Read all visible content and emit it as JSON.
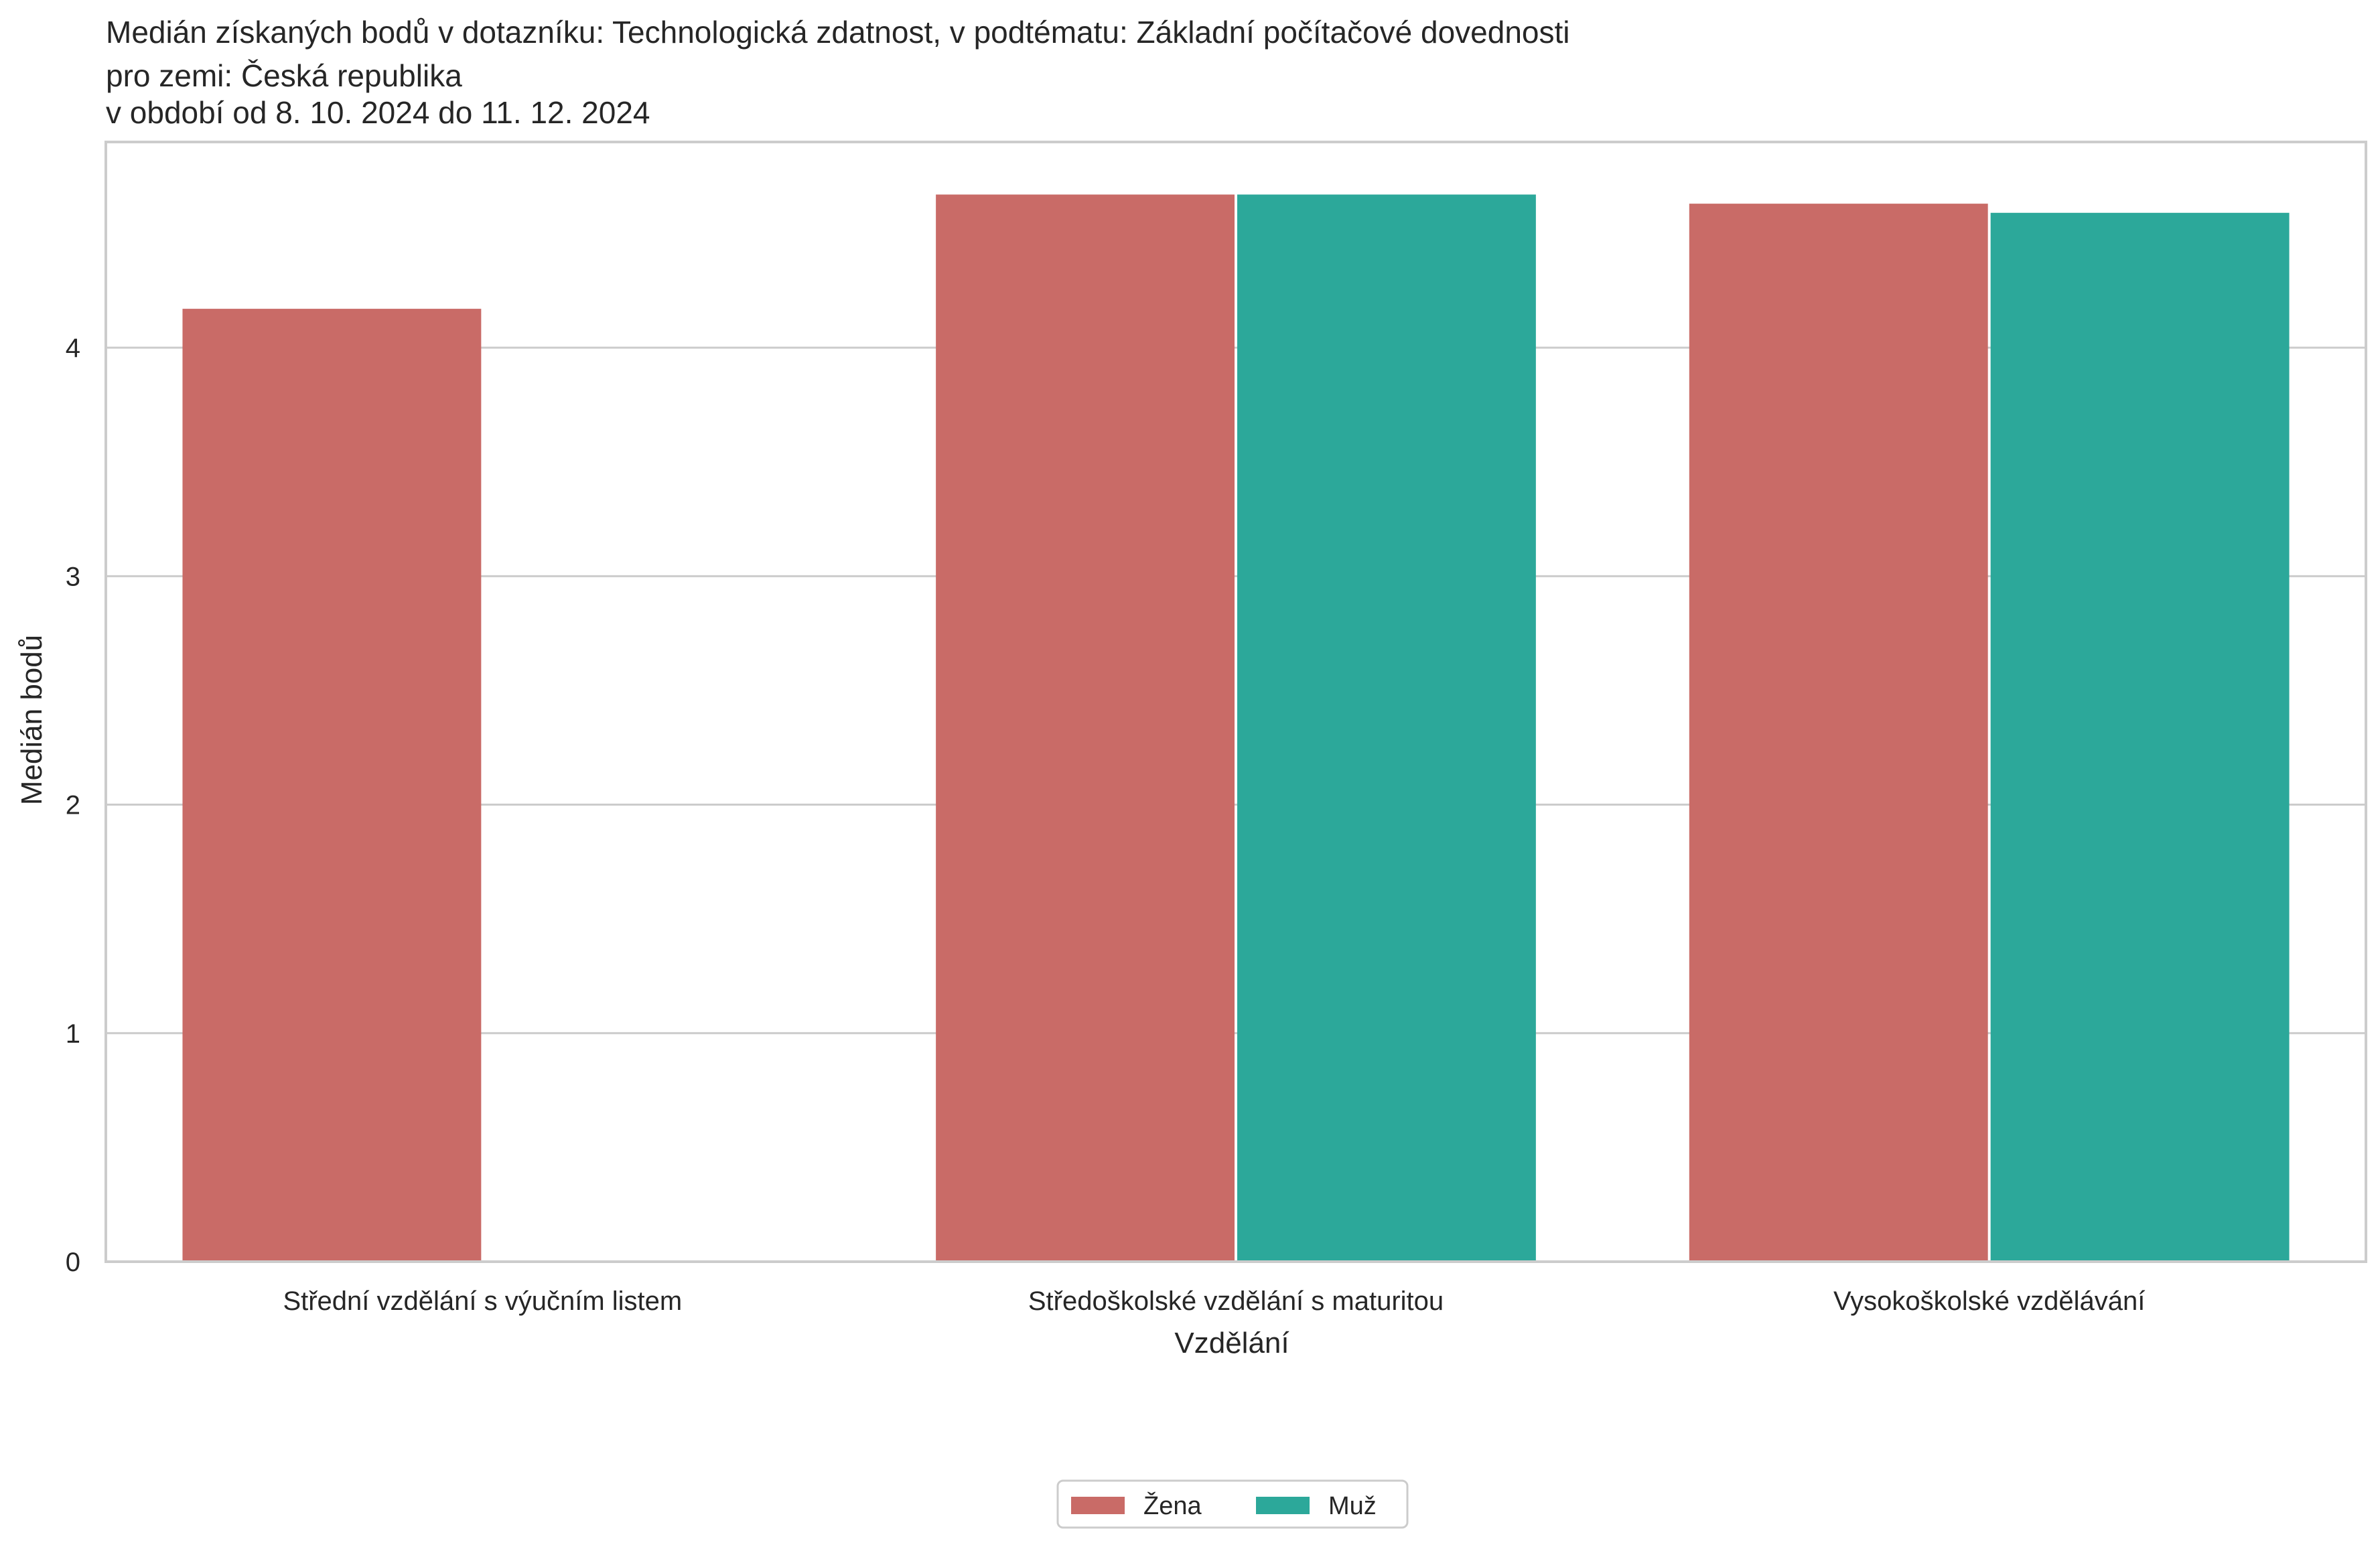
{
  "chart_data": {
    "type": "bar",
    "title_lines": [
      "Medián získaných bodů v dotazníku: Technologická zdatnost, v podtématu: Základní počítačové dovednosti",
      "pro zemi: Česká republika",
      "v období od 8. 10. 2024 do 11. 12. 2024"
    ],
    "xlabel": "Vzdělání",
    "ylabel": "Medián bodů",
    "categories": [
      "Střední vzdělání s výučním listem",
      "Středoškolské vzdělání s maturitou",
      "Vysokoškolské vzdělávání"
    ],
    "series": [
      {
        "name": "Žena",
        "color": "#c96b67",
        "values": [
          4.17,
          4.67,
          4.63
        ]
      },
      {
        "name": "Muž",
        "color": "#2ca89a",
        "values": [
          null,
          4.67,
          4.59
        ]
      }
    ],
    "ylim": [
      0,
      4.9
    ],
    "yticks": [
      "0",
      "1",
      "2",
      "3",
      "4"
    ],
    "grid": "horizontal",
    "legend_position": "bottom-center"
  }
}
